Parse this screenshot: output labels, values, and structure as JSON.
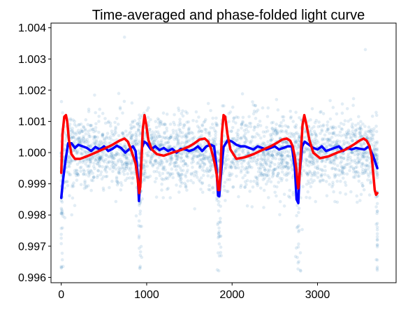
{
  "chart_data": {
    "type": "scatter",
    "title": "Time-averaged and phase-folded light curve",
    "xlabel": "",
    "ylabel": "",
    "xlim": [
      -120,
      3920
    ],
    "ylim": [
      0.99583,
      1.00415
    ],
    "xticks": [
      0,
      1000,
      2000,
      3000
    ],
    "xtick_labels": [
      "0",
      "1000",
      "2000",
      "3000"
    ],
    "yticks": [
      0.996,
      0.997,
      0.998,
      0.999,
      1.0,
      1.001,
      1.002,
      1.003,
      1.004
    ],
    "ytick_labels": [
      "0.996",
      "0.997",
      "0.998",
      "0.999",
      "1.000",
      "1.001",
      "1.002",
      "1.003",
      "1.004"
    ],
    "grid": false,
    "colors": {
      "scatter": "#1f77b4",
      "averaged": "#0000ff",
      "model": "#ff0000"
    },
    "scatter_summary": {
      "x_range": [
        0,
        3700
      ],
      "baseline": 1.0,
      "typical_scatter": 0.0006,
      "dip_positions": [
        0,
        925,
        1850,
        2775,
        3700
      ],
      "dip_min": 0.9962,
      "outliers": [
        {
          "x": 740,
          "y": 1.0037
        },
        {
          "x": 3560,
          "y": 1.0033
        },
        {
          "x": 2800,
          "y": 0.99623
        }
      ]
    },
    "series": [
      {
        "x": [
          0,
          20,
          50,
          80,
          120,
          160,
          200,
          250,
          300,
          350,
          400,
          450,
          500,
          550,
          600,
          650,
          700,
          750,
          800,
          840,
          870,
          895,
          910,
          925,
          945,
          970,
          1000,
          1050,
          1100,
          1150,
          1200,
          1250,
          1300,
          1350,
          1400,
          1450,
          1500,
          1550,
          1600,
          1650,
          1700,
          1750,
          1790,
          1815,
          1835,
          1850,
          1870,
          1900,
          1950,
          2000,
          2050,
          2100,
          2150,
          2200,
          2250,
          2300,
          2350,
          2400,
          2450,
          2500,
          2550,
          2600,
          2650,
          2700,
          2735,
          2755,
          2775,
          2790,
          2820,
          2850,
          2900,
          2950,
          3000,
          3050,
          3100,
          3150,
          3200,
          3250,
          3300,
          3350,
          3400,
          3450,
          3500,
          3550,
          3600,
          3650,
          3700
        ],
        "y": [
          0.99855,
          0.9991,
          0.99975,
          1.0003,
          1.0003,
          1.00015,
          1.00025,
          1.0002,
          1.00015,
          1.00005,
          1.00018,
          1.0001,
          1.0002,
          1.00005,
          1.00012,
          1.00022,
          1.00015,
          1.0,
          1.00012,
          1.0002,
          1.00005,
          0.9993,
          0.99845,
          0.9991,
          1.00015,
          1.00035,
          1.0003,
          1.0001,
          1.0002,
          1.00008,
          1.00015,
          1.00005,
          1.00012,
          1.0,
          1.00012,
          1.0001,
          1.00005,
          1.0001,
          1.0002,
          1.00005,
          1.0002,
          1.00025,
          1.0002,
          0.9996,
          0.99862,
          0.9986,
          0.9993,
          1.00018,
          1.0004,
          1.00035,
          1.00025,
          1.0002,
          1.0002,
          1.00015,
          1.0001,
          1.0002,
          1.00015,
          1.0001,
          1.00015,
          1.0002,
          1.0001,
          1.00015,
          1.0002,
          1.0002,
          0.9995,
          0.9985,
          0.99838,
          0.9993,
          1.0002,
          1.00035,
          1.00025,
          1.00015,
          1.0001,
          1.0002,
          1.00005,
          1.0001,
          1.00015,
          1.0002,
          1.00005,
          1.00015,
          1.0001,
          1.00015,
          1.00012,
          1.0001,
          1.0002,
          0.9999,
          0.9995
        ]
      },
      {
        "x": [
          0,
          15,
          35,
          55,
          70,
          90,
          120,
          160,
          220,
          300,
          400,
          500,
          600,
          680,
          740,
          780,
          810,
          840,
          870,
          895,
          912,
          925,
          938,
          955,
          975,
          995,
          1020,
          1060,
          1120,
          1200,
          1300,
          1400,
          1500,
          1560,
          1620,
          1680,
          1720,
          1750,
          1780,
          1800,
          1820,
          1838,
          1850,
          1862,
          1880,
          1900,
          1920,
          1945,
          1980,
          2050,
          2150,
          2250,
          2350,
          2450,
          2530,
          2590,
          2640,
          2680,
          2710,
          2735,
          2755,
          2768,
          2775,
          2785,
          2805,
          2825,
          2845,
          2870,
          2905,
          2950,
          3030,
          3130,
          3230,
          3330,
          3420,
          3490,
          3540,
          3575,
          3610,
          3635,
          3655,
          3670,
          3685,
          3700
        ],
        "y": [
          0.99935,
          1.0006,
          1.00115,
          1.0012,
          1.001,
          1.0004,
          0.99995,
          0.9998,
          0.9998,
          0.99988,
          1.0,
          1.00012,
          1.00025,
          1.00038,
          1.00045,
          1.00035,
          1.00015,
          0.9999,
          0.99965,
          0.99915,
          0.9987,
          0.9989,
          0.9997,
          1.00075,
          1.0012,
          1.0009,
          1.0004,
          1.0001,
          0.99995,
          0.9999,
          1.0,
          1.00008,
          1.0002,
          1.0003,
          1.00042,
          1.00045,
          1.00035,
          1.00015,
          0.99985,
          0.9996,
          0.9993,
          0.9988,
          0.9988,
          0.9993,
          1.0006,
          1.0012,
          1.00115,
          1.0006,
          1.0001,
          0.9998,
          0.99985,
          0.99995,
          1.00008,
          1.0002,
          1.00032,
          1.00042,
          1.00045,
          1.00038,
          1.0002,
          0.99985,
          0.9994,
          0.999,
          0.99885,
          0.99905,
          1.0,
          1.0009,
          1.0012,
          1.0009,
          1.0004,
          1.0,
          0.99982,
          0.99988,
          1.0,
          1.0001,
          1.00025,
          1.00038,
          1.00045,
          1.00038,
          1.0002,
          0.99985,
          0.99925,
          0.9988,
          0.99865,
          0.9987
        ]
      }
    ]
  }
}
